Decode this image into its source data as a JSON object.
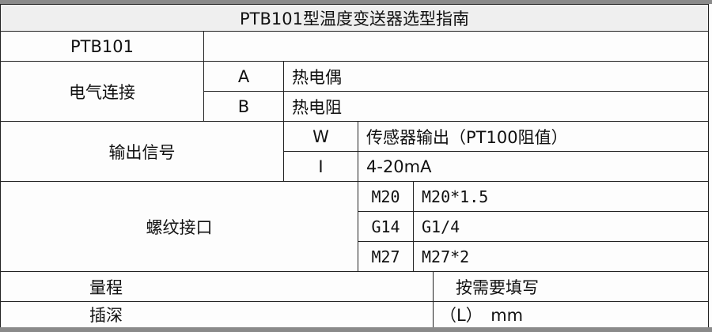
{
  "title": "PTB101型温度变送器选型指南",
  "model": "PTB101",
  "sections": [
    {
      "label": "电气连接",
      "options": [
        {
          "code": "A",
          "desc": "热电偶"
        },
        {
          "code": "B",
          "desc": "热电阻"
        }
      ]
    },
    {
      "label": "输出信号",
      "options": [
        {
          "code": "W",
          "desc": "传感器输出（PT100阻值）"
        },
        {
          "code": "I",
          "desc": "4-20mA"
        }
      ]
    },
    {
      "label": "螺纹接口",
      "options": [
        {
          "code": "M20",
          "desc": "M20*1.5"
        },
        {
          "code": "G14",
          "desc": "G1/4"
        },
        {
          "code": "M27",
          "desc": "M27*2"
        }
      ]
    }
  ],
  "range": {
    "label": "量程",
    "value": "按需要填写"
  },
  "depth": {
    "label": "插深",
    "value": "（L）　mm"
  }
}
